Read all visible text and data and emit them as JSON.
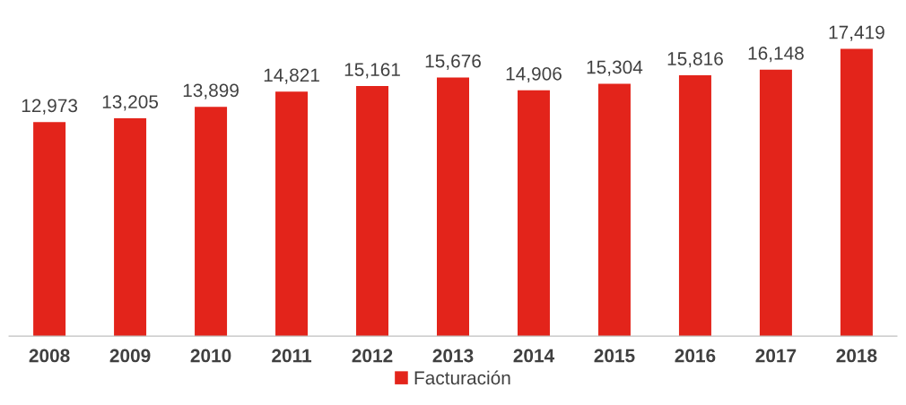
{
  "chart_data": {
    "type": "bar",
    "categories": [
      "2008",
      "2009",
      "2010",
      "2011",
      "2012",
      "2013",
      "2014",
      "2015",
      "2016",
      "2017",
      "2018"
    ],
    "series": [
      {
        "name": "Facturación",
        "color": "#e3241b",
        "values": [
          12973,
          13205,
          13899,
          14821,
          15161,
          15676,
          14906,
          15304,
          15816,
          16148,
          17419
        ],
        "value_labels": [
          "12,973",
          "13,205",
          "13,899",
          "14,821",
          "15,161",
          "15,676",
          "14,906",
          "15,304",
          "15,816",
          "16,148",
          "17,419"
        ]
      }
    ],
    "tick_labels": "x",
    "legend": "bottom",
    "grid": false
  }
}
